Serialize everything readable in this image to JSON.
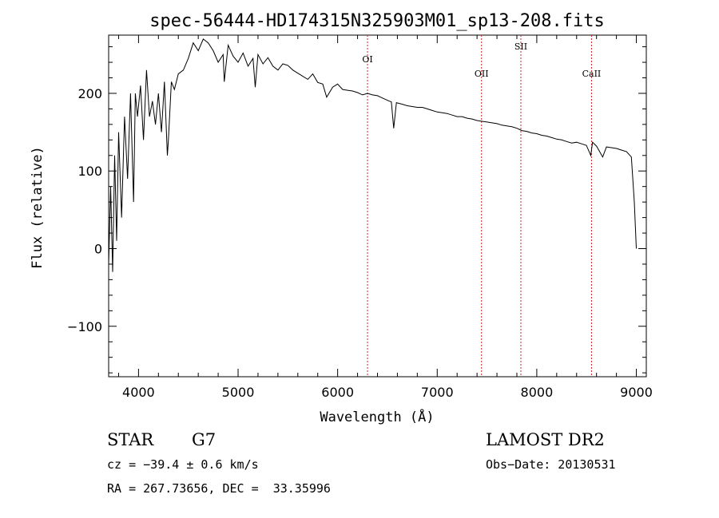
{
  "chart_data": {
    "type": "line",
    "title": "spec-56444-HD174315N325903M01_sp13-208.fits",
    "xlabel": "Wavelength (Å)",
    "ylabel": "Flux (relative)",
    "xlim": [
      3700,
      9100
    ],
    "ylim": [
      -165,
      275
    ],
    "x_ticks": [
      4000,
      5000,
      6000,
      7000,
      8000,
      9000
    ],
    "y_ticks": [
      -100,
      0,
      100,
      200
    ],
    "grid": false,
    "series": [
      {
        "x": [
          3700,
          3720,
          3740,
          3760,
          3780,
          3800,
          3830,
          3860,
          3890,
          3920,
          3950,
          3968,
          3990,
          4020,
          4050,
          4080,
          4110,
          4140,
          4170,
          4200,
          4230,
          4260,
          4290,
          4300,
          4330,
          4360,
          4400,
          4450,
          4500,
          4550,
          4600,
          4650,
          4700,
          4750,
          4800,
          4850,
          4861,
          4900,
          4950,
          5000,
          5050,
          5100,
          5150,
          5172,
          5200,
          5250,
          5300,
          5350,
          5400,
          5450,
          5500,
          5550,
          5600,
          5650,
          5700,
          5750,
          5800,
          5850,
          5890,
          5950,
          6000,
          6050,
          6100,
          6150,
          6200,
          6250,
          6300,
          6350,
          6400,
          6450,
          6500,
          6540,
          6563,
          6590,
          6650,
          6700,
          6750,
          6800,
          6850,
          6900,
          6950,
          7000,
          7050,
          7100,
          7150,
          7200,
          7250,
          7300,
          7350,
          7400,
          7450,
          7500,
          7550,
          7600,
          7650,
          7700,
          7750,
          7800,
          7850,
          7900,
          7950,
          8000,
          8050,
          8100,
          8150,
          8200,
          8250,
          8300,
          8350,
          8400,
          8450,
          8498,
          8542,
          8560,
          8600,
          8662,
          8700,
          8750,
          8800,
          8850,
          8900,
          8950,
          8980,
          9000
        ],
        "y": [
          -20,
          80,
          -30,
          120,
          10,
          150,
          40,
          170,
          90,
          200,
          60,
          200,
          170,
          210,
          140,
          230,
          170,
          190,
          160,
          200,
          150,
          215,
          120,
          140,
          215,
          205,
          225,
          230,
          245,
          265,
          255,
          270,
          265,
          255,
          240,
          250,
          215,
          262,
          248,
          240,
          252,
          235,
          245,
          208,
          250,
          238,
          246,
          235,
          230,
          238,
          236,
          230,
          226,
          222,
          218,
          225,
          214,
          212,
          195,
          208,
          212,
          205,
          204,
          203,
          201,
          198,
          200,
          198,
          197,
          194,
          191,
          189,
          155,
          188,
          186,
          184,
          183,
          182,
          182,
          180,
          178,
          176,
          175,
          174,
          172,
          170,
          170,
          168,
          167,
          165,
          164,
          163,
          162,
          161,
          159,
          158,
          157,
          155,
          152,
          151,
          149,
          148,
          146,
          145,
          143,
          141,
          140,
          138,
          136,
          137,
          135,
          133,
          120,
          137,
          132,
          118,
          131,
          130,
          129,
          127,
          125,
          118,
          60,
          0
        ]
      }
    ],
    "annotations": [
      "OI",
      "OII",
      "SII",
      "CaII"
    ],
    "marker_lines_x": [
      6300,
      7445,
      7840,
      8550
    ],
    "marker_color": "#cc2222"
  },
  "footer": {
    "object_type": "STAR",
    "subclass": "G7",
    "survey": "LAMOST DR2",
    "cz": "cz = −39.4 ± 0.6 km/s",
    "obs_date": "Obs−Date: 20130531",
    "coords": "RA = 267.73656, DEC =  33.35996"
  }
}
